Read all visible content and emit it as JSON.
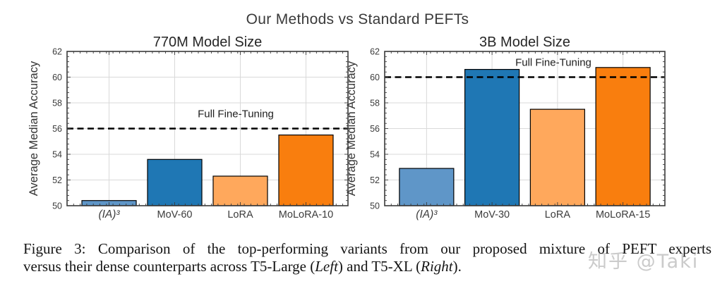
{
  "main_title": "Our Methods vs Standard PEFTs",
  "caption": {
    "line1": "Figure 3:  Comparison of the top-performing variants from our proposed mixture of PEFT experts",
    "line2_pre": "versus their dense counterparts across T5-Large (",
    "line2_left_word": "Left",
    "line2_mid": ") and T5-XL (",
    "line2_right_word": "Right",
    "line2_end": ")."
  },
  "watermark": {
    "text": "知乎 @Taki",
    "color": "#cbcbcb"
  },
  "colors": {
    "bar_edge": "#000000",
    "grid": "#d9d9d9",
    "spine": "#3a3a3a",
    "tick_label": "#3c3c3c",
    "axis_label": "#333333",
    "chart_title": "#262626",
    "ref_line": "#000000",
    "ref_label": "#1d1d1d"
  },
  "chart_data": [
    {
      "type": "bar",
      "title": "770M Model Size",
      "categories": [
        "(IA)³",
        "MoV-60",
        "LoRA",
        "MoLoRA-10"
      ],
      "values": [
        50.4,
        53.6,
        52.3,
        55.5
      ],
      "bar_colors": [
        "#5f96c8",
        "#1f77b4",
        "#ffa85c",
        "#f97e0e"
      ],
      "xlabel": "",
      "ylabel": "Average Median Accuracy",
      "ylim": [
        50,
        62
      ],
      "yticks": [
        50,
        52,
        54,
        56,
        58,
        60,
        62
      ],
      "grid": true,
      "legend": "none",
      "reference_line": {
        "value": 56,
        "label": "Full Fine-Tuning"
      }
    },
    {
      "type": "bar",
      "title": "3B Model Size",
      "categories": [
        "(IA)³",
        "MoV-30",
        "LoRA",
        "MoLoRA-15"
      ],
      "values": [
        52.9,
        60.6,
        57.5,
        60.75
      ],
      "bar_colors": [
        "#5f96c8",
        "#1f77b4",
        "#ffa85c",
        "#f97e0e"
      ],
      "xlabel": "",
      "ylabel": "Average Median Accuracy",
      "ylim": [
        50,
        62
      ],
      "yticks": [
        50,
        52,
        54,
        56,
        58,
        60,
        62
      ],
      "grid": true,
      "legend": "none",
      "reference_line": {
        "value": 60,
        "label": "Full Fine-Tuning"
      }
    }
  ]
}
